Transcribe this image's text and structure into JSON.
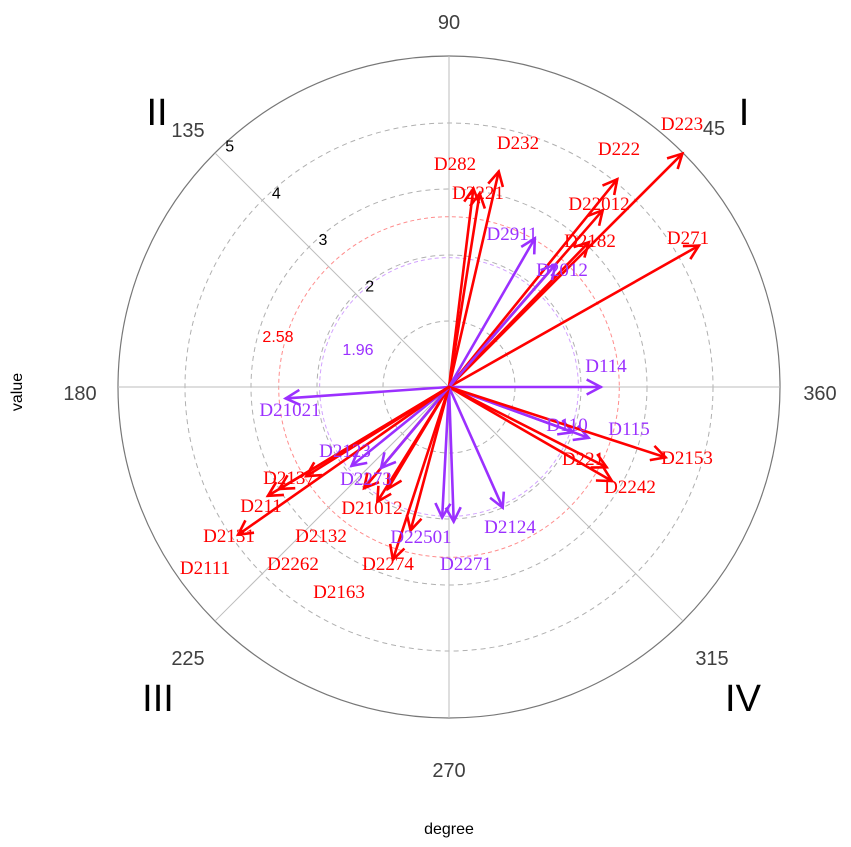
{
  "chart_data": {
    "type": "polar-vector",
    "xlabel": "degree",
    "ylabel": "value",
    "angle_ticks": [
      "90",
      "45",
      "360",
      "315",
      "270",
      "225",
      "180",
      "135"
    ],
    "quadrants": [
      "I",
      "II",
      "III",
      "IV"
    ],
    "radial_ticks": [
      "2",
      "3",
      "4",
      "5"
    ],
    "rlim": [
      0,
      5
    ],
    "grid": true,
    "thresholds": [
      {
        "label": "1.96",
        "value": 1.96,
        "color": "#9b30ff"
      },
      {
        "label": "2.58",
        "value": 2.58,
        "color": "#ff0000"
      }
    ],
    "colors": {
      "red": "#ff0000",
      "purple": "#9b30ff"
    },
    "vectors": [
      {
        "label": "D223",
        "angle": 45,
        "r": 5.0,
        "color": "red"
      },
      {
        "label": "D222",
        "angle": 51,
        "r": 4.05,
        "color": "red"
      },
      {
        "label": "D22012",
        "angle": 49,
        "r": 3.55,
        "color": "red"
      },
      {
        "label": "D2182",
        "angle": 46,
        "r": 3.05,
        "color": "red"
      },
      {
        "label": "D271",
        "angle": 29.5,
        "r": 4.35,
        "color": "red"
      },
      {
        "label": "D232",
        "angle": 77,
        "r": 3.35,
        "color": "red"
      },
      {
        "label": "D282",
        "angle": 83,
        "r": 3.03,
        "color": "red"
      },
      {
        "label": "D2221",
        "angle": 81,
        "r": 2.97,
        "color": "red"
      },
      {
        "label": "D2911",
        "angle": 60,
        "r": 2.6,
        "color": "purple"
      },
      {
        "label": "D2012",
        "angle": 49,
        "r": 2.46,
        "color": "purple"
      },
      {
        "label": "D114",
        "angle": 360,
        "r": 2.3,
        "color": "purple"
      },
      {
        "label": "D21021",
        "angle": 184,
        "r": 2.48,
        "color": "purple"
      },
      {
        "label": "D115",
        "angle": 340,
        "r": 2.25,
        "color": "purple"
      },
      {
        "label": "D110",
        "angle": 340,
        "r": 2.0,
        "color": "purple"
      },
      {
        "label": "D2153",
        "angle": 342,
        "r": 3.45,
        "color": "red"
      },
      {
        "label": "D221",
        "angle": 333,
        "r": 2.68,
        "color": "red"
      },
      {
        "label": "D2242",
        "angle": 330,
        "r": 2.85,
        "color": "red"
      },
      {
        "label": "D2124",
        "angle": 294,
        "r": 2.0,
        "color": "purple"
      },
      {
        "label": "D2271",
        "angle": 272,
        "r": 2.04,
        "color": "purple"
      },
      {
        "label": "D22501",
        "angle": 267,
        "r": 1.98,
        "color": "purple"
      },
      {
        "label": "D2274",
        "angle": 255,
        "r": 2.25,
        "color": "red"
      },
      {
        "label": "D2163",
        "angle": 252,
        "r": 2.75,
        "color": "red"
      },
      {
        "label": "D2262",
        "angle": 238,
        "r": 2.05,
        "color": "red"
      },
      {
        "label": "D21012",
        "angle": 239,
        "r": 1.8,
        "color": "red"
      },
      {
        "label": "D2132",
        "angle": 230,
        "r": 2.0,
        "color": "red"
      },
      {
        "label": "D2273",
        "angle": 230,
        "r": 1.6,
        "color": "purple"
      },
      {
        "label": "D2123",
        "angle": 219,
        "r": 1.9,
        "color": "purple"
      },
      {
        "label": "D2137",
        "angle": 212,
        "r": 2.55,
        "color": "red"
      },
      {
        "label": "D211",
        "angle": 211,
        "r": 3.0,
        "color": "red"
      },
      {
        "label": "D2131",
        "angle": 211,
        "r": 3.2,
        "color": "red"
      },
      {
        "label": "D2111",
        "angle": 215,
        "r": 3.9,
        "color": "red"
      }
    ]
  }
}
